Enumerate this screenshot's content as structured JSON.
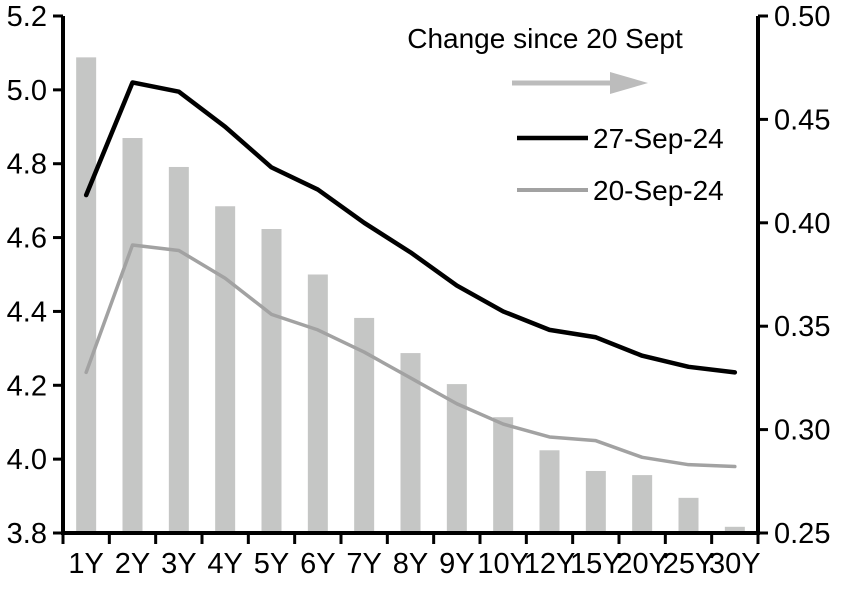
{
  "chart_data": {
    "type": "combo",
    "categories": [
      "1Y",
      "2Y",
      "3Y",
      "4Y",
      "5Y",
      "6Y",
      "7Y",
      "8Y",
      "9Y",
      "10Y",
      "12Y",
      "15Y",
      "20Y",
      "25Y",
      "30Y"
    ],
    "series": [
      {
        "name": "Change since 20 Sept",
        "type": "bar",
        "axis": "right",
        "color": "#c5c6c5",
        "values": [
          0.48,
          0.441,
          0.427,
          0.408,
          0.397,
          0.375,
          0.354,
          0.337,
          0.322,
          0.306,
          0.29,
          0.28,
          0.278,
          0.267,
          0.253
        ]
      },
      {
        "name": "27-Sep-24",
        "type": "line",
        "axis": "left",
        "color": "#000000",
        "values": [
          4.715,
          5.02,
          4.995,
          4.9,
          4.79,
          4.73,
          4.64,
          4.56,
          4.47,
          4.4,
          4.35,
          4.33,
          4.28,
          4.25,
          4.235
        ]
      },
      {
        "name": "20-Sep-24",
        "type": "line",
        "axis": "left",
        "color": "#a2a2a2",
        "values": [
          4.235,
          4.58,
          4.565,
          4.49,
          4.392,
          4.35,
          4.29,
          4.22,
          4.15,
          4.095,
          4.06,
          4.05,
          4.005,
          3.985,
          3.98
        ]
      }
    ],
    "left_axis": {
      "min": 3.8,
      "max": 5.2,
      "step": 0.2,
      "tick_labels": [
        "5.2",
        "5.0",
        "4.8",
        "4.6",
        "4.4",
        "4.2",
        "4.0",
        "3.8"
      ]
    },
    "right_axis": {
      "min": 0.25,
      "max": 0.5,
      "step": 0.05,
      "tick_labels": [
        "0.50",
        "0.45",
        "0.40",
        "0.35",
        "0.30",
        "0.25"
      ]
    },
    "grid": false,
    "legend_position": "top-center-inside",
    "legend": {
      "bar_label": "Change since 20 Sept",
      "arrow_color": "#bcbcbc",
      "line1_label": "27-Sep-24",
      "line2_label": "20-Sep-24"
    }
  }
}
